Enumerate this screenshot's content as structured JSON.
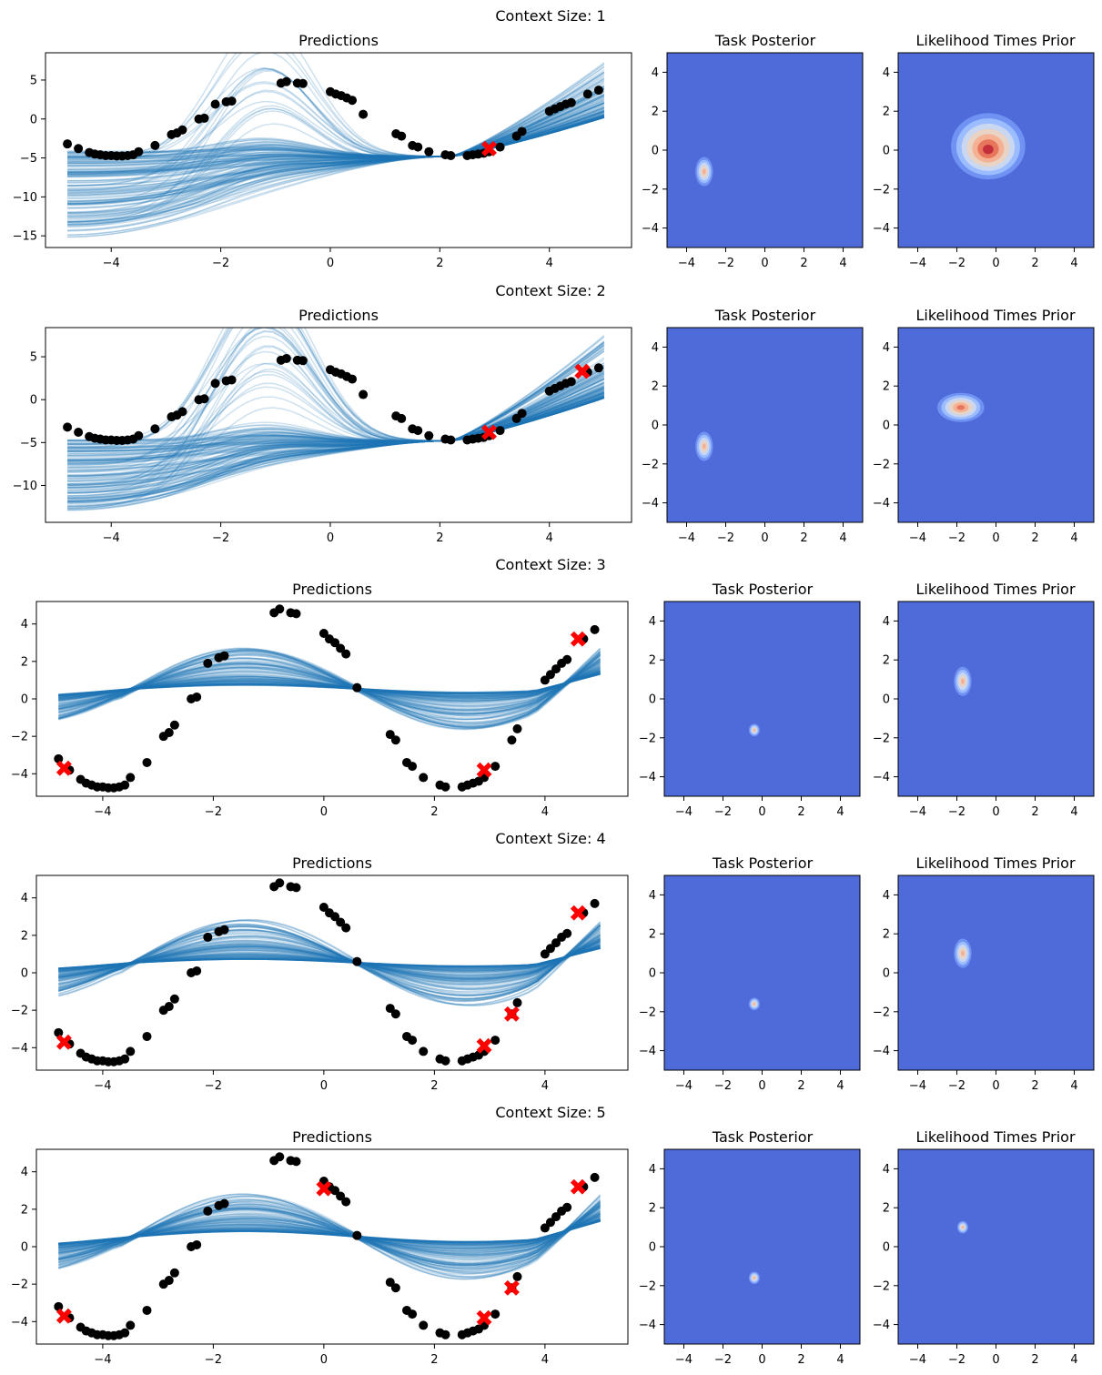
{
  "figure": {
    "bg": "#ffffff"
  },
  "colors": {
    "line": "#1f77b4",
    "point": "#000000",
    "context": "#ff0000",
    "heat_bg": "#4f6ad9"
  },
  "panel_titles": {
    "predictions": "Predictions",
    "posterior": "Task Posterior",
    "likelihood": "Likelihood Times Prior"
  },
  "rows": [
    {
      "suptitle": "Context Size: 1"
    },
    {
      "suptitle": "Context Size: 2"
    },
    {
      "suptitle": "Context Size: 3"
    },
    {
      "suptitle": "Context Size: 4"
    },
    {
      "suptitle": "Context Size: 5"
    }
  ],
  "chart_data": [
    {
      "type": "line",
      "title": "Predictions",
      "context_size": 1,
      "xlim": [
        -5.2,
        5.5
      ],
      "ylim": [
        -16.5,
        8.5
      ],
      "xticks": [
        -4,
        -2,
        0,
        2,
        4
      ],
      "yticks": [
        -15,
        -10,
        -5,
        0,
        5
      ],
      "context_points": [
        [
          2.9,
          -3.8
        ]
      ],
      "predictions": {
        "n_samples": 150,
        "x_range": [
          -4.8,
          5.0
        ],
        "pivot": [
          2.2,
          -4.8
        ],
        "left_spread": [
          -15.5,
          -4.0
        ],
        "right_spread": [
          0.2,
          7.5
        ]
      }
    },
    {
      "type": "heatmap",
      "title": "Task Posterior",
      "xlim": [
        -5,
        5
      ],
      "ylim": [
        -5,
        5
      ],
      "ticks": [
        -4,
        -2,
        0,
        2,
        4
      ],
      "peak": [
        -3.1,
        -1.1
      ],
      "size": "small"
    },
    {
      "type": "heatmap",
      "title": "Likelihood Times Prior",
      "xlim": [
        -5,
        5
      ],
      "ylim": [
        -5,
        5
      ],
      "ticks": [
        -4,
        -2,
        0,
        2,
        4
      ],
      "peak": [
        -0.4,
        0.2
      ],
      "size": "large"
    },
    {
      "type": "line",
      "title": "Predictions",
      "context_size": 2,
      "xlim": [
        -5.2,
        5.5
      ],
      "ylim": [
        -14.3,
        8.4
      ],
      "xticks": [
        -4,
        -2,
        0,
        2,
        4
      ],
      "yticks": [
        -10,
        -5,
        0,
        5
      ],
      "context_points": [
        [
          2.9,
          -3.8
        ],
        [
          4.6,
          3.3
        ]
      ],
      "predictions": {
        "n_samples": 150,
        "x_range": [
          -4.8,
          5.0
        ],
        "pivot": [
          2.2,
          -4.8
        ],
        "left_spread": [
          -13.0,
          -4.5
        ],
        "right_spread": [
          0.2,
          7.5
        ]
      }
    },
    {
      "type": "heatmap",
      "title": "Task Posterior",
      "xlim": [
        -5,
        5
      ],
      "ylim": [
        -5,
        5
      ],
      "ticks": [
        -4,
        -2,
        0,
        2,
        4
      ],
      "peak": [
        -3.1,
        -1.1
      ],
      "size": "small"
    },
    {
      "type": "heatmap",
      "title": "Likelihood Times Prior",
      "xlim": [
        -5,
        5
      ],
      "ylim": [
        -5,
        5
      ],
      "ticks": [
        -4,
        -2,
        0,
        2,
        4
      ],
      "peak": [
        -1.8,
        0.9
      ],
      "size": "medium"
    },
    {
      "type": "line",
      "title": "Predictions",
      "context_size": 3,
      "xlim": [
        -5.2,
        5.5
      ],
      "ylim": [
        -5.2,
        5.2
      ],
      "xticks": [
        -4,
        -2,
        0,
        2,
        4
      ],
      "yticks": [
        -4,
        -2,
        0,
        2,
        4
      ],
      "context_points": [
        [
          -4.7,
          -3.7
        ],
        [
          2.9,
          -3.8
        ],
        [
          4.6,
          3.2
        ]
      ],
      "predictions": {
        "n_samples": 120,
        "amplitude_range": [
          0.2,
          2.5
        ],
        "pivot_x": 0.6
      }
    },
    {
      "type": "heatmap",
      "title": "Task Posterior",
      "xlim": [
        -5,
        5
      ],
      "ylim": [
        -5,
        5
      ],
      "ticks": [
        -4,
        -2,
        0,
        2,
        4
      ],
      "peak": [
        -0.4,
        -1.6
      ],
      "size": "tiny"
    },
    {
      "type": "heatmap",
      "title": "Likelihood Times Prior",
      "xlim": [
        -5,
        5
      ],
      "ylim": [
        -5,
        5
      ],
      "ticks": [
        -4,
        -2,
        0,
        2,
        4
      ],
      "peak": [
        -1.7,
        0.9
      ],
      "size": "small"
    },
    {
      "type": "line",
      "title": "Predictions",
      "context_size": 4,
      "xlim": [
        -5.2,
        5.5
      ],
      "ylim": [
        -5.2,
        5.2
      ],
      "xticks": [
        -4,
        -2,
        0,
        2,
        4
      ],
      "yticks": [
        -4,
        -2,
        0,
        2,
        4
      ],
      "context_points": [
        [
          -4.7,
          -3.7
        ],
        [
          2.9,
          -3.9
        ],
        [
          3.4,
          -2.2
        ],
        [
          4.6,
          3.2
        ]
      ],
      "predictions": {
        "n_samples": 120,
        "amplitude_range": [
          0.2,
          2.6
        ],
        "pivot_x": 0.6
      }
    },
    {
      "type": "heatmap",
      "title": "Task Posterior",
      "xlim": [
        -5,
        5
      ],
      "ylim": [
        -5,
        5
      ],
      "ticks": [
        -4,
        -2,
        0,
        2,
        4
      ],
      "peak": [
        -0.4,
        -1.6
      ],
      "size": "tiny"
    },
    {
      "type": "heatmap",
      "title": "Likelihood Times Prior",
      "xlim": [
        -5,
        5
      ],
      "ylim": [
        -5,
        5
      ],
      "ticks": [
        -4,
        -2,
        0,
        2,
        4
      ],
      "peak": [
        -1.7,
        1.0
      ],
      "size": "small"
    },
    {
      "type": "line",
      "title": "Predictions",
      "context_size": 5,
      "xlim": [
        -5.2,
        5.5
      ],
      "ylim": [
        -5.2,
        5.2
      ],
      "xticks": [
        -4,
        -2,
        0,
        2,
        4
      ],
      "yticks": [
        -4,
        -2,
        0,
        2,
        4
      ],
      "context_points": [
        [
          -4.7,
          -3.7
        ],
        [
          0.0,
          3.1
        ],
        [
          2.9,
          -3.8
        ],
        [
          3.4,
          -2.2
        ],
        [
          4.6,
          3.2
        ]
      ],
      "predictions": {
        "n_samples": 120,
        "amplitude_range": [
          0.3,
          2.6
        ],
        "pivot_x": 0.6
      }
    },
    {
      "type": "heatmap",
      "title": "Task Posterior",
      "xlim": [
        -5,
        5
      ],
      "ylim": [
        -5,
        5
      ],
      "ticks": [
        -4,
        -2,
        0,
        2,
        4
      ],
      "peak": [
        -0.4,
        -1.6
      ],
      "size": "tiny"
    },
    {
      "type": "heatmap",
      "title": "Likelihood Times Prior",
      "xlim": [
        -5,
        5
      ],
      "ylim": [
        -5,
        5
      ],
      "ticks": [
        -4,
        -2,
        0,
        2,
        4
      ],
      "peak": [
        -1.7,
        1.0
      ],
      "size": "tiny"
    }
  ],
  "ground_truth": {
    "x": [
      -4.8,
      -4.6,
      -4.4,
      -4.3,
      -4.2,
      -4.1,
      -4.0,
      -3.9,
      -3.8,
      -3.7,
      -3.6,
      -3.5,
      -3.2,
      -2.9,
      -2.8,
      -2.7,
      -2.4,
      -2.3,
      -2.1,
      -1.9,
      -1.8,
      -0.9,
      -0.8,
      -0.6,
      -0.5,
      0.0,
      0.1,
      0.2,
      0.3,
      0.4,
      0.6,
      1.2,
      1.3,
      1.5,
      1.6,
      1.8,
      2.1,
      2.2,
      2.5,
      2.6,
      2.7,
      2.8,
      2.9,
      3.1,
      3.4,
      3.5,
      4.0,
      4.1,
      4.2,
      4.3,
      4.4,
      4.7,
      4.9
    ],
    "y": [
      -3.2,
      -3.8,
      -4.3,
      -4.5,
      -4.6,
      -4.7,
      -4.7,
      -4.75,
      -4.75,
      -4.7,
      -4.6,
      -4.2,
      -3.4,
      -2.0,
      -1.8,
      -1.4,
      0.0,
      0.1,
      1.9,
      2.2,
      2.3,
      4.6,
      4.8,
      4.6,
      4.55,
      3.5,
      3.2,
      3.0,
      2.7,
      2.4,
      0.6,
      -1.9,
      -2.2,
      -3.4,
      -3.6,
      -4.2,
      -4.6,
      -4.7,
      -4.7,
      -4.6,
      -4.5,
      -4.4,
      -4.2,
      -3.6,
      -2.2,
      -1.6,
      1.0,
      1.3,
      1.6,
      1.9,
      2.1,
      3.2,
      3.7
    ]
  }
}
